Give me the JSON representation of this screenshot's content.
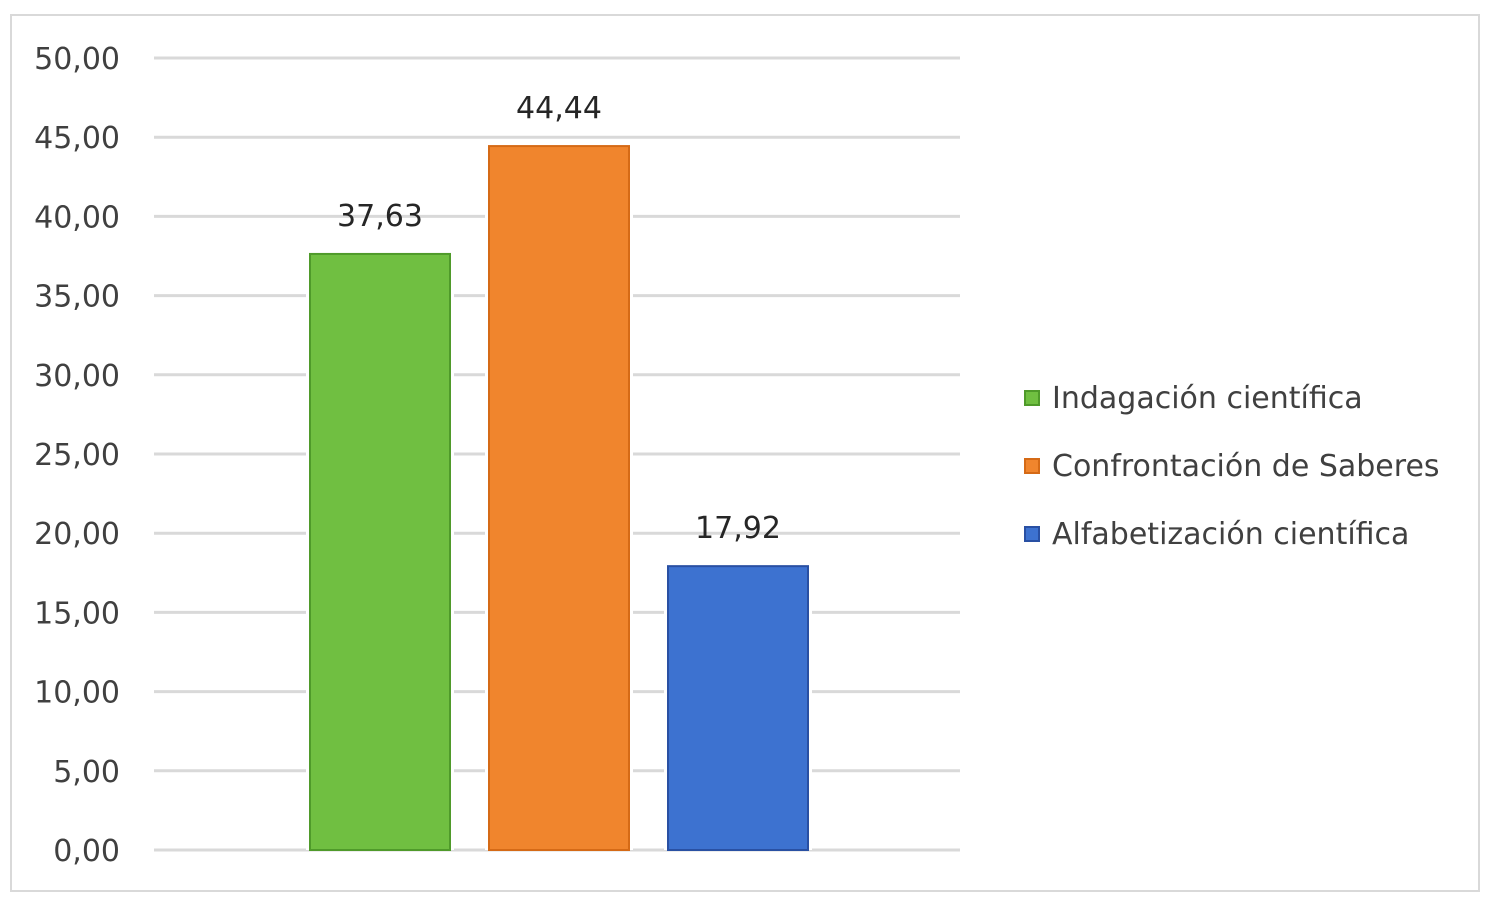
{
  "chart_data": {
    "type": "bar",
    "title": "",
    "xlabel": "",
    "ylabel": "",
    "ylim": [
      0,
      50
    ],
    "y_ticks": [
      "0,00",
      "5,00",
      "10,00",
      "15,00",
      "20,00",
      "25,00",
      "30,00",
      "35,00",
      "40,00",
      "45,00",
      "50,00"
    ],
    "grid": true,
    "legend_position": "right",
    "series": [
      {
        "name": "Indagación científica",
        "value": 37.63,
        "label": "37,63",
        "color": "#70bf41",
        "stroke": "#4f9a2a"
      },
      {
        "name": "Confrontación de Saberes",
        "value": 44.44,
        "label": "44,44",
        "color": "#f0852d",
        "stroke": "#d56a16"
      },
      {
        "name": "Alfabetización científica",
        "value": 17.92,
        "label": "17,92",
        "color": "#3d72d0",
        "stroke": "#2950a3"
      }
    ]
  }
}
